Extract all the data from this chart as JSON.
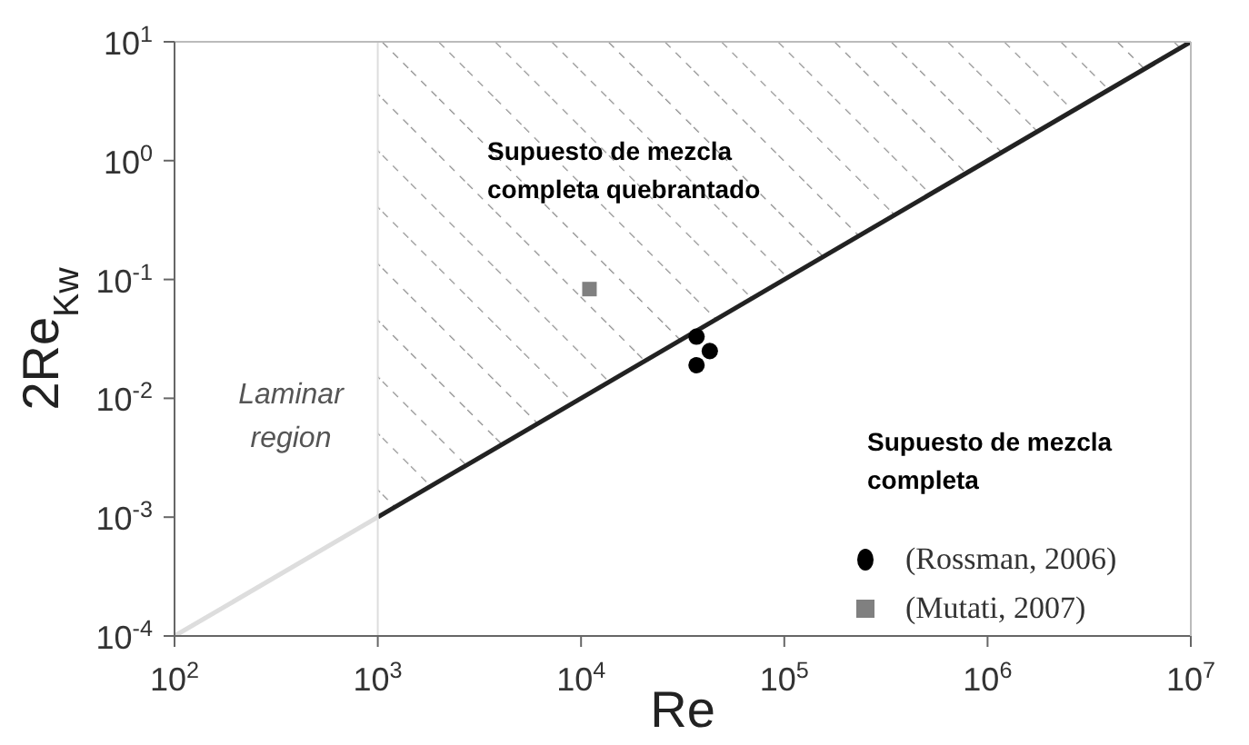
{
  "chart_data": {
    "type": "scatter",
    "xlabel": "Re",
    "ylabel": "2Re$_{Kw}$",
    "log": "xy",
    "xlim": [
      100,
      10000000
    ],
    "ylim": [
      0.0001,
      10
    ],
    "xticks": [
      {
        "value": 100,
        "label": "10$^{2}$"
      },
      {
        "value": 1000,
        "label": "10$^{3}$"
      },
      {
        "value": 10000,
        "label": "10$^{4}$"
      },
      {
        "value": 100000,
        "label": "10$^{5}$"
      },
      {
        "value": 1000000,
        "label": "10$^{6}$"
      },
      {
        "value": 10000000,
        "label": "10$^{7}$"
      }
    ],
    "yticks": [
      {
        "value": 0.0001,
        "label": "10$^{-4}$"
      },
      {
        "value": 0.001,
        "label": "10$^{-3}$"
      },
      {
        "value": 0.01,
        "label": "10$^{-2}$"
      },
      {
        "value": 0.1,
        "label": "10$^{-1}$"
      },
      {
        "value": 1,
        "label": "10$^{0}$"
      },
      {
        "value": 10,
        "label": "10$^{1}$"
      }
    ],
    "series": [
      {
        "type": "line",
        "color": "#dddddd",
        "x": [
          100,
          1000
        ],
        "values": [
          0.0001,
          0.001
        ]
      },
      {
        "type": "area",
        "color": "#222222",
        "x": [
          1000,
          10000000
        ],
        "values": [
          0.001,
          10
        ]
      },
      {
        "name": "(Rossman, 2006)",
        "color": "#000000",
        "marker": "circle",
        "x": [
          37000,
          37000,
          43000
        ],
        "values": [
          0.033,
          0.019,
          0.025
        ]
      },
      {
        "name": "(Mutati, 2007)",
        "color": "#808080",
        "marker": "square",
        "x": [
          11000
        ],
        "values": [
          0.083
        ]
      }
    ],
    "ref_lines": [
      {
        "axis": "x",
        "value": 1000,
        "color": "#dddddd"
      }
    ],
    "annotations": [
      "Laminar region",
      "Supuesto de mezcla completa quebrantado",
      "Supuesto de mezcla completa"
    ],
    "legend": "bottom right",
    "grid": false
  }
}
